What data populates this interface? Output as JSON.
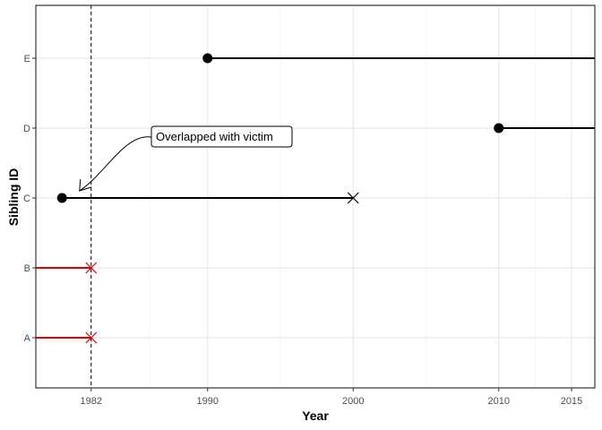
{
  "chart_data": {
    "type": "line",
    "title": "",
    "xlabel": "Year",
    "ylabel": "Sibling ID",
    "xlim": [
      1978.2,
      2016.6
    ],
    "x_ticks": [
      1982,
      1990,
      2000,
      2010,
      2015
    ],
    "x_tick_labels": [
      "1982",
      "1990",
      "2000",
      "2010",
      "2015"
    ],
    "categories": [
      "A",
      "B",
      "C",
      "D",
      "E"
    ],
    "grid": true,
    "reference_line": {
      "x": 1982,
      "style": "dashed"
    },
    "series": [
      {
        "id": "A",
        "start": 1978.2,
        "end": 1982,
        "start_marker": "none",
        "end_marker": "cross",
        "color": "#dd0000"
      },
      {
        "id": "B",
        "start": 1978.2,
        "end": 1982,
        "start_marker": "none",
        "end_marker": "cross",
        "color": "#dd0000"
      },
      {
        "id": "C",
        "start": 1980,
        "end": 2000,
        "start_marker": "dot",
        "end_marker": "cross",
        "color": "#000000"
      },
      {
        "id": "D",
        "start": 2010,
        "end": 2016.6,
        "start_marker": "dot",
        "end_marker": "none",
        "color": "#000000"
      },
      {
        "id": "E",
        "start": 1990,
        "end": 2016.6,
        "start_marker": "dot",
        "end_marker": "none",
        "color": "#000000"
      }
    ],
    "annotation": {
      "text": "Overlapped with victim",
      "target_x": 1981.2,
      "target_category": "C"
    }
  }
}
